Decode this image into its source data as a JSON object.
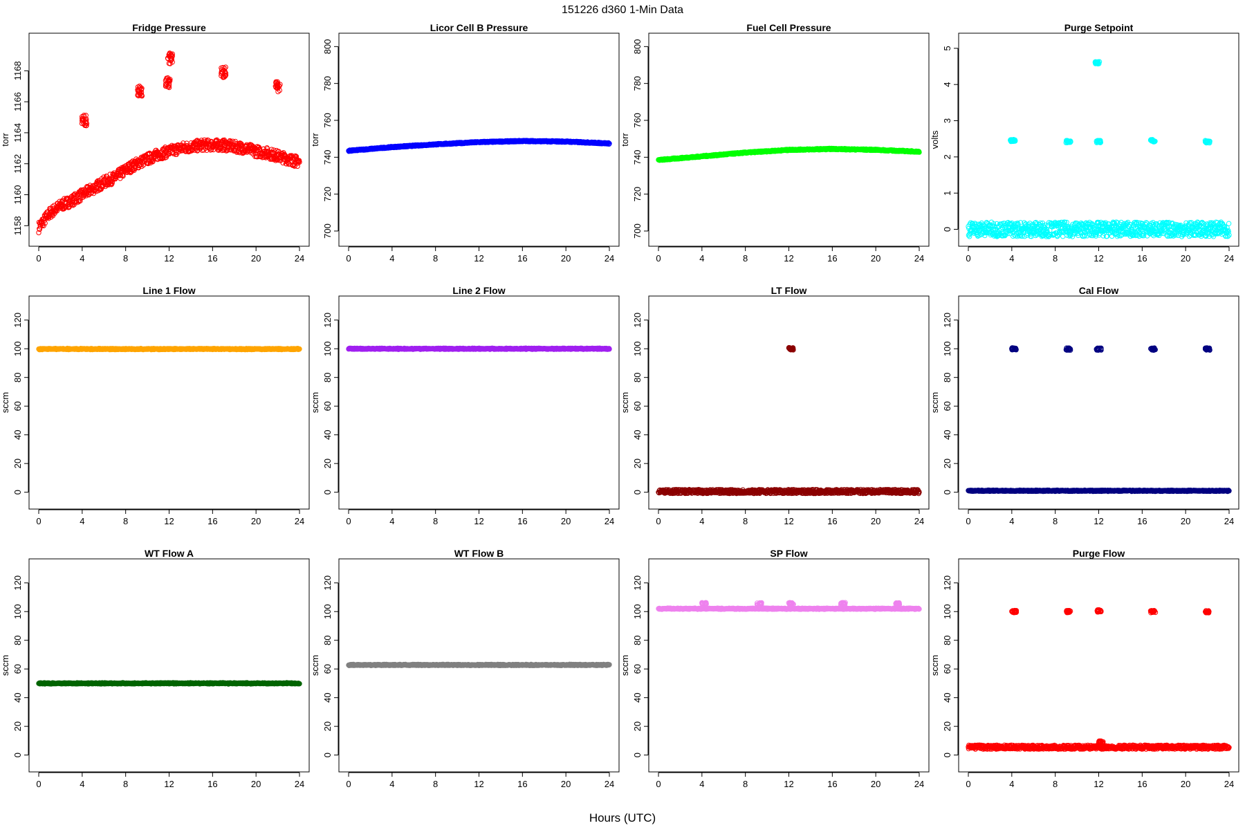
{
  "header": {
    "title": "151226    d360    1-Min Data"
  },
  "footer": {
    "xlabel": "Hours (UTC)"
  },
  "chart_data": [
    {
      "type": "scatter",
      "title": "Fridge Pressure",
      "ylabel": "torr",
      "color": "#ff0000",
      "xlim": [
        0,
        24
      ],
      "ylim": [
        1157.3,
        1169.8
      ],
      "xticks": [
        0,
        4,
        8,
        12,
        16,
        20,
        24
      ],
      "yticks": [
        1158,
        1160,
        1162,
        1164,
        1166,
        1168
      ],
      "gen": "fridge",
      "segments": [
        {
          "x": [
            0,
            1,
            2,
            3,
            4,
            5,
            6,
            7,
            8,
            9,
            10,
            11,
            12,
            13,
            14,
            15,
            16,
            17,
            18,
            19,
            20,
            21,
            22,
            23,
            24
          ],
          "y": [
            1157.9,
            1158.8,
            1159.3,
            1159.6,
            1160.0,
            1160.4,
            1160.8,
            1161.1,
            1161.6,
            1162.0,
            1162.3,
            1162.6,
            1162.8,
            1163.0,
            1163.1,
            1163.2,
            1163.2,
            1163.2,
            1163.1,
            1163.0,
            1162.8,
            1162.7,
            1162.5,
            1162.3,
            1162.1
          ]
        }
      ],
      "clusters": [
        {
          "x": 4.2,
          "y": 1164.8
        },
        {
          "x": 9.3,
          "y": 1166.7
        },
        {
          "x": 11.9,
          "y": 1167.2
        },
        {
          "x": 12.1,
          "y": 1168.8
        },
        {
          "x": 17.0,
          "y": 1167.9
        },
        {
          "x": 22.0,
          "y": 1167.0
        }
      ]
    },
    {
      "type": "scatter",
      "title": "Licor Cell B Pressure",
      "ylabel": "torr",
      "color": "#0000ff",
      "xlim": [
        0,
        24
      ],
      "ylim": [
        697,
        802
      ],
      "xticks": [
        0,
        4,
        8,
        12,
        16,
        20,
        24
      ],
      "yticks": [
        700,
        720,
        740,
        760,
        780,
        800
      ],
      "gen": "curve",
      "segments": [
        {
          "x": [
            0,
            4,
            8,
            12,
            16,
            20,
            24
          ],
          "y": [
            743.5,
            745.5,
            747.0,
            748.2,
            748.8,
            748.5,
            747.5
          ]
        }
      ]
    },
    {
      "type": "scatter",
      "title": "Fuel Cell Pressure",
      "ylabel": "torr",
      "color": "#00ff00",
      "xlim": [
        0,
        24
      ],
      "ylim": [
        697,
        802
      ],
      "xticks": [
        0,
        4,
        8,
        12,
        16,
        20,
        24
      ],
      "yticks": [
        700,
        720,
        740,
        760,
        780,
        800
      ],
      "gen": "curve",
      "segments": [
        {
          "x": [
            0,
            4,
            8,
            12,
            16,
            20,
            24
          ],
          "y": [
            738.5,
            740.5,
            742.5,
            744.0,
            744.5,
            744.0,
            743.0
          ]
        }
      ]
    },
    {
      "type": "scatter",
      "title": "Purge Setpoint",
      "ylabel": "volts",
      "color": "#00ffff",
      "xlim": [
        0,
        24
      ],
      "ylim": [
        -0.2,
        5.15
      ],
      "xticks": [
        0,
        4,
        8,
        12,
        16,
        20,
        24
      ],
      "yticks": [
        0,
        1,
        2,
        3,
        4,
        5
      ],
      "gen": "flat",
      "segments": [
        {
          "x": [
            0,
            24
          ],
          "y": [
            0.0,
            0.0
          ]
        }
      ],
      "clusters": [
        {
          "x": 4.1,
          "y": 2.45
        },
        {
          "x": 9.2,
          "y": 2.42
        },
        {
          "x": 12.0,
          "y": 2.42
        },
        {
          "x": 17.0,
          "y": 2.45
        },
        {
          "x": 22.0,
          "y": 2.42
        },
        {
          "x": 11.9,
          "y": 4.6
        }
      ]
    },
    {
      "type": "scatter",
      "title": "Line 1 Flow",
      "ylabel": "sccm",
      "color": "#ffa500",
      "xlim": [
        0,
        24
      ],
      "ylim": [
        -5,
        130
      ],
      "xticks": [
        0,
        4,
        8,
        12,
        16,
        20,
        24
      ],
      "yticks": [
        0,
        20,
        40,
        60,
        80,
        100,
        120
      ],
      "gen": "flat",
      "segments": [
        {
          "x": [
            0,
            24
          ],
          "y": [
            99.8,
            99.8
          ]
        }
      ]
    },
    {
      "type": "scatter",
      "title": "Line 2 Flow",
      "ylabel": "sccm",
      "color": "#a020f0",
      "xlim": [
        0,
        24
      ],
      "ylim": [
        -5,
        130
      ],
      "xticks": [
        0,
        4,
        8,
        12,
        16,
        20,
        24
      ],
      "yticks": [
        0,
        20,
        40,
        60,
        80,
        100,
        120
      ],
      "gen": "flat",
      "segments": [
        {
          "x": [
            0,
            24
          ],
          "y": [
            100.0,
            100.0
          ]
        }
      ]
    },
    {
      "type": "scatter",
      "title": "LT Flow",
      "ylabel": "sccm",
      "color": "#8b0000",
      "xlim": [
        0,
        24
      ],
      "ylim": [
        -5,
        130
      ],
      "xticks": [
        0,
        4,
        8,
        12,
        16,
        20,
        24
      ],
      "yticks": [
        0,
        20,
        40,
        60,
        80,
        100,
        120
      ],
      "gen": "noisy",
      "segments": [
        {
          "x": [
            0,
            24
          ],
          "y": [
            0.5,
            0.5
          ]
        }
      ],
      "clusters": [
        {
          "x": 12.2,
          "y": 100.0
        }
      ]
    },
    {
      "type": "scatter",
      "title": "Cal Flow",
      "ylabel": "sccm",
      "color": "#000080",
      "xlim": [
        0,
        24
      ],
      "ylim": [
        -5,
        130
      ],
      "xticks": [
        0,
        4,
        8,
        12,
        16,
        20,
        24
      ],
      "yticks": [
        0,
        20,
        40,
        60,
        80,
        100,
        120
      ],
      "gen": "flat",
      "segments": [
        {
          "x": [
            0,
            24
          ],
          "y": [
            1.0,
            1.0
          ]
        }
      ],
      "clusters": [
        {
          "x": 4.2,
          "y": 99.8
        },
        {
          "x": 9.2,
          "y": 99.8
        },
        {
          "x": 12.0,
          "y": 99.8
        },
        {
          "x": 17.0,
          "y": 99.8
        },
        {
          "x": 22.0,
          "y": 99.8
        }
      ]
    },
    {
      "type": "scatter",
      "title": "WT Flow A",
      "ylabel": "sccm",
      "color": "#006400",
      "xlim": [
        0,
        24
      ],
      "ylim": [
        -5,
        130
      ],
      "xticks": [
        0,
        4,
        8,
        12,
        16,
        20,
        24
      ],
      "yticks": [
        0,
        20,
        40,
        60,
        80,
        100,
        120
      ],
      "gen": "flat",
      "segments": [
        {
          "x": [
            0,
            24
          ],
          "y": [
            50.0,
            50.0
          ]
        }
      ]
    },
    {
      "type": "scatter",
      "title": "WT Flow B",
      "ylabel": "sccm",
      "color": "#808080",
      "xlim": [
        0,
        24
      ],
      "ylim": [
        -5,
        130
      ],
      "xticks": [
        0,
        4,
        8,
        12,
        16,
        20,
        24
      ],
      "yticks": [
        0,
        20,
        40,
        60,
        80,
        100,
        120
      ],
      "gen": "flat",
      "segments": [
        {
          "x": [
            0,
            24
          ],
          "y": [
            62.8,
            62.8
          ]
        }
      ]
    },
    {
      "type": "scatter",
      "title": "SP Flow",
      "ylabel": "sccm",
      "color": "#ee82ee",
      "xlim": [
        0,
        24
      ],
      "ylim": [
        -5,
        130
      ],
      "xticks": [
        0,
        4,
        8,
        12,
        16,
        20,
        24
      ],
      "yticks": [
        0,
        20,
        40,
        60,
        80,
        100,
        120
      ],
      "gen": "flat",
      "segments": [
        {
          "x": [
            0,
            24
          ],
          "y": [
            102.0,
            102.0
          ]
        }
      ],
      "clusters": [
        {
          "x": 4.2,
          "y": 105.5
        },
        {
          "x": 9.3,
          "y": 105.5
        },
        {
          "x": 12.2,
          "y": 105.5
        },
        {
          "x": 17.0,
          "y": 105.5
        },
        {
          "x": 22.0,
          "y": 105.5
        }
      ]
    },
    {
      "type": "scatter",
      "title": "Purge Flow",
      "ylabel": "sccm",
      "color": "#ff0000",
      "xlim": [
        0,
        24
      ],
      "ylim": [
        -5,
        130
      ],
      "xticks": [
        0,
        4,
        8,
        12,
        16,
        20,
        24
      ],
      "yticks": [
        0,
        20,
        40,
        60,
        80,
        100,
        120
      ],
      "gen": "noisy",
      "segments": [
        {
          "x": [
            0,
            24
          ],
          "y": [
            5.5,
            5.5
          ]
        }
      ],
      "clusters": [
        {
          "x": 4.2,
          "y": 100.0
        },
        {
          "x": 9.2,
          "y": 100.0
        },
        {
          "x": 12.0,
          "y": 100.5
        },
        {
          "x": 17.0,
          "y": 100.0
        },
        {
          "x": 22.0,
          "y": 100.0
        },
        {
          "x": 12.2,
          "y": 9.0
        }
      ]
    }
  ]
}
